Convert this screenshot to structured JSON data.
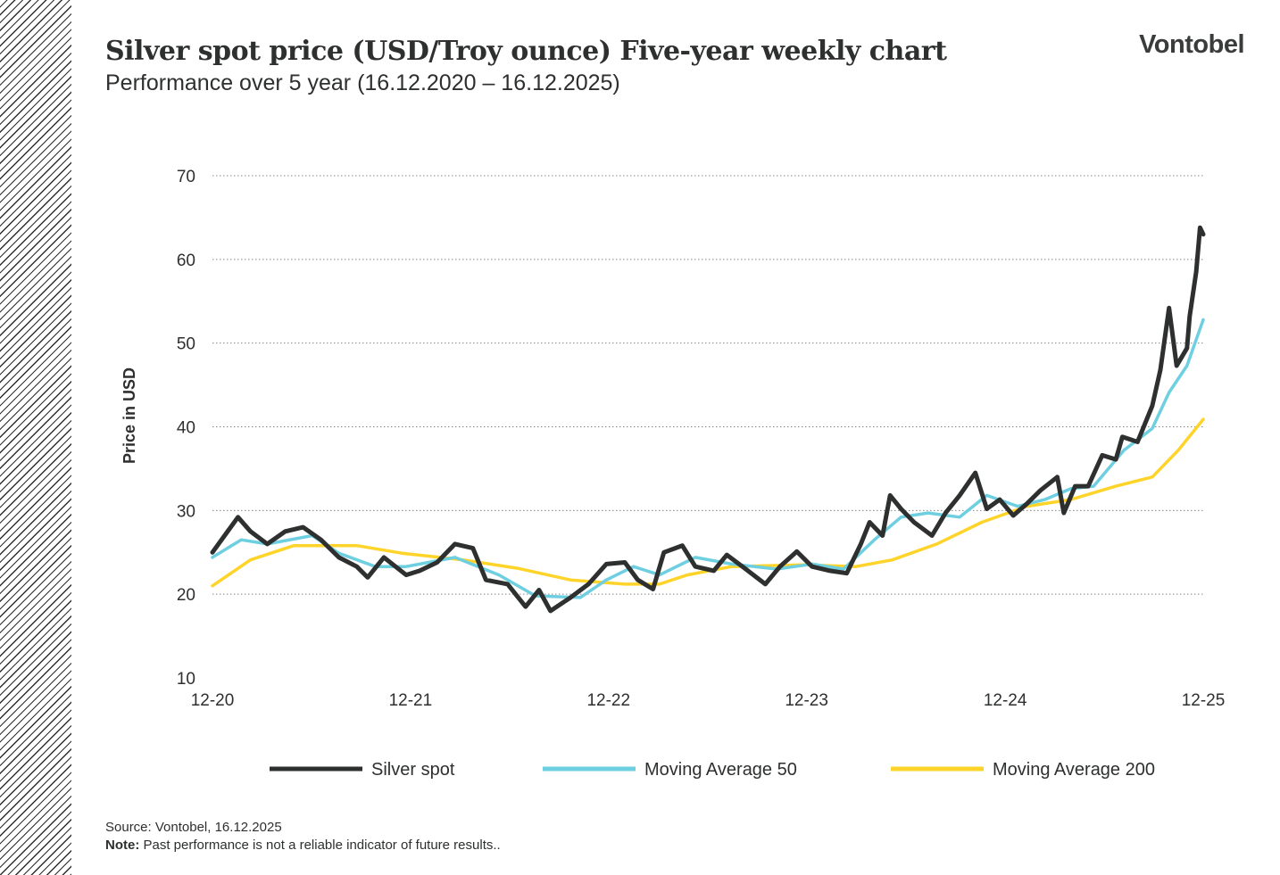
{
  "header": {
    "title": "Silver spot price (USD/Troy ounce) Five-year weekly chart",
    "subtitle": "Performance over 5 year (16.12.2020 – 16.12.2025)",
    "logo": "Vontobel"
  },
  "footer": {
    "source": "Source: Vontobel, 16.12.2025",
    "note_label": "Note:",
    "note_text": " Past performance is not a reliable indicator of future results.."
  },
  "chart_data": {
    "type": "line",
    "title": "Silver spot price (USD/Troy ounce) Five-year weekly chart",
    "xlabel": "",
    "ylabel": "Price in USD",
    "xlim": [
      "2020-12-16",
      "2025-12-16"
    ],
    "ylim": [
      10,
      70
    ],
    "yticks": [
      10,
      20,
      30,
      40,
      50,
      60,
      70
    ],
    "xticks": [
      {
        "date": "2020-12-16",
        "label": "12-20"
      },
      {
        "date": "2021-12-16",
        "label": "12-21"
      },
      {
        "date": "2022-12-16",
        "label": "12-22"
      },
      {
        "date": "2023-12-16",
        "label": "12-23"
      },
      {
        "date": "2024-12-16",
        "label": "12-24"
      },
      {
        "date": "2025-12-16",
        "label": "12-25"
      }
    ],
    "grid": "horizontal dotted",
    "legend": "bottom",
    "series": [
      {
        "name": "Silver spot",
        "color": "#2d302e",
        "points": [
          [
            "2020-12-16",
            25
          ],
          [
            "2021-02-01",
            29.2
          ],
          [
            "2021-02-24",
            27.5
          ],
          [
            "2021-03-27",
            26
          ],
          [
            "2021-04-29",
            27.5
          ],
          [
            "2021-06-01",
            28
          ],
          [
            "2021-07-04",
            26.5
          ],
          [
            "2021-08-06",
            24.4
          ],
          [
            "2021-09-08",
            23.3
          ],
          [
            "2021-09-28",
            22
          ],
          [
            "2021-10-28",
            24.4
          ],
          [
            "2021-12-08",
            22.3
          ],
          [
            "2022-01-02",
            22.8
          ],
          [
            "2022-02-03",
            23.8
          ],
          [
            "2022-03-08",
            26
          ],
          [
            "2022-04-10",
            25.5
          ],
          [
            "2022-05-04",
            21.7
          ],
          [
            "2022-06-13",
            21.2
          ],
          [
            "2022-07-16",
            18.5
          ],
          [
            "2022-08-10",
            20.5
          ],
          [
            "2022-08-31",
            18
          ],
          [
            "2022-10-07",
            19.6
          ],
          [
            "2022-11-09",
            21.2
          ],
          [
            "2022-12-12",
            23.6
          ],
          [
            "2023-01-15",
            23.8
          ],
          [
            "2023-02-08",
            21.7
          ],
          [
            "2023-03-08",
            20.6
          ],
          [
            "2023-03-28",
            25
          ],
          [
            "2023-05-01",
            25.8
          ],
          [
            "2023-05-25",
            23.3
          ],
          [
            "2023-06-28",
            22.8
          ],
          [
            "2023-07-22",
            24.7
          ],
          [
            "2023-08-24",
            23.1
          ],
          [
            "2023-10-01",
            21.2
          ],
          [
            "2023-10-28",
            23.3
          ],
          [
            "2023-11-28",
            25.1
          ],
          [
            "2023-12-26",
            23.3
          ],
          [
            "2024-01-28",
            22.8
          ],
          [
            "2024-02-28",
            22.5
          ],
          [
            "2024-03-25",
            26
          ],
          [
            "2024-04-10",
            28.6
          ],
          [
            "2024-05-04",
            27
          ],
          [
            "2024-05-18",
            31.8
          ],
          [
            "2024-06-07",
            30.2
          ],
          [
            "2024-07-01",
            28.6
          ],
          [
            "2024-08-03",
            27
          ],
          [
            "2024-08-28",
            29.7
          ],
          [
            "2024-09-23",
            31.8
          ],
          [
            "2024-10-22",
            34.5
          ],
          [
            "2024-11-12",
            30.2
          ],
          [
            "2024-12-06",
            31.3
          ],
          [
            "2024-12-31",
            29.4
          ],
          [
            "2025-01-25",
            30.8
          ],
          [
            "2025-02-19",
            32.4
          ],
          [
            "2025-03-22",
            34
          ],
          [
            "2025-04-03",
            29.7
          ],
          [
            "2025-04-24",
            32.9
          ],
          [
            "2025-05-18",
            32.9
          ],
          [
            "2025-06-13",
            36.6
          ],
          [
            "2025-07-08",
            36.1
          ],
          [
            "2025-07-20",
            38.8
          ],
          [
            "2025-08-17",
            38.2
          ],
          [
            "2025-09-13",
            42.5
          ],
          [
            "2025-09-28",
            46.8
          ],
          [
            "2025-10-14",
            54.2
          ],
          [
            "2025-10-28",
            47.3
          ],
          [
            "2025-11-16",
            49.4
          ],
          [
            "2025-11-21",
            53.2
          ],
          [
            "2025-12-03",
            58.5
          ],
          [
            "2025-12-10",
            63.8
          ],
          [
            "2025-12-16",
            63
          ]
        ]
      },
      {
        "name": "Moving Average 50",
        "color": "#6ecfe0",
        "points": [
          [
            "2020-12-16",
            24.4
          ],
          [
            "2021-02-07",
            26.5
          ],
          [
            "2021-03-27",
            26
          ],
          [
            "2021-06-18",
            27
          ],
          [
            "2021-08-06",
            24.9
          ],
          [
            "2021-10-12",
            23.3
          ],
          [
            "2021-12-08",
            23.3
          ],
          [
            "2022-03-08",
            24.4
          ],
          [
            "2022-05-28",
            22.3
          ],
          [
            "2022-08-03",
            19.8
          ],
          [
            "2022-10-25",
            19.6
          ],
          [
            "2022-12-12",
            21.7
          ],
          [
            "2023-01-31",
            23.3
          ],
          [
            "2023-03-20",
            22.3
          ],
          [
            "2023-05-25",
            24.4
          ],
          [
            "2023-07-31",
            23.6
          ],
          [
            "2023-10-22",
            23
          ],
          [
            "2023-12-26",
            23.6
          ],
          [
            "2024-02-22",
            23
          ],
          [
            "2024-04-19",
            26.5
          ],
          [
            "2024-06-07",
            29.2
          ],
          [
            "2024-07-27",
            29.7
          ],
          [
            "2024-09-23",
            29.2
          ],
          [
            "2024-11-12",
            31.8
          ],
          [
            "2025-01-08",
            30.5
          ],
          [
            "2025-02-27",
            31.3
          ],
          [
            "2025-04-16",
            32.6
          ],
          [
            "2025-05-28",
            32.9
          ],
          [
            "2025-07-23",
            37.2
          ],
          [
            "2025-09-13",
            39.8
          ],
          [
            "2025-10-14",
            44.1
          ],
          [
            "2025-11-16",
            47.3
          ],
          [
            "2025-12-16",
            52.8
          ]
        ]
      },
      {
        "name": "Moving Average 200",
        "color": "#ffd42a",
        "points": [
          [
            "2020-12-16",
            21
          ],
          [
            "2021-02-24",
            24.1
          ],
          [
            "2021-05-15",
            25.8
          ],
          [
            "2021-09-08",
            25.8
          ],
          [
            "2021-11-30",
            24.9
          ],
          [
            "2022-03-23",
            24.1
          ],
          [
            "2022-07-01",
            23.1
          ],
          [
            "2022-10-07",
            21.7
          ],
          [
            "2023-01-15",
            21.2
          ],
          [
            "2023-03-20",
            21.2
          ],
          [
            "2023-05-10",
            22.3
          ],
          [
            "2023-07-31",
            23.3
          ],
          [
            "2023-12-10",
            23.5
          ],
          [
            "2024-03-16",
            23.3
          ],
          [
            "2024-05-22",
            24.1
          ],
          [
            "2024-08-12",
            26
          ],
          [
            "2024-11-03",
            28.6
          ],
          [
            "2025-01-25",
            30.5
          ],
          [
            "2025-04-16",
            31.3
          ],
          [
            "2025-07-08",
            32.9
          ],
          [
            "2025-09-13",
            34
          ],
          [
            "2025-10-31",
            37.2
          ],
          [
            "2025-12-16",
            40.9
          ]
        ]
      }
    ]
  }
}
